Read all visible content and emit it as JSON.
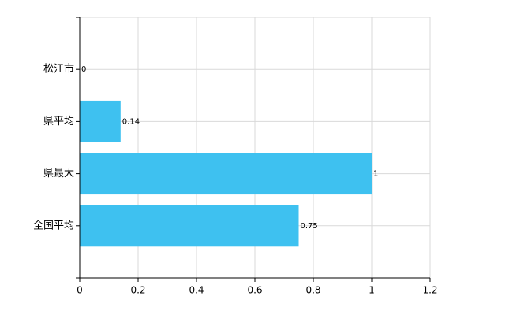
{
  "chart_data": {
    "type": "bar",
    "orientation": "horizontal",
    "categories": [
      "松江市",
      "県平均",
      "県最大",
      "全国平均"
    ],
    "values": [
      0,
      0.14,
      1,
      0.75
    ],
    "color": "#3ec1f0",
    "xlim": [
      0,
      1.2
    ],
    "xticks": [
      0,
      0.2,
      0.4,
      0.6,
      0.8,
      1,
      1.2
    ],
    "grid": true
  }
}
